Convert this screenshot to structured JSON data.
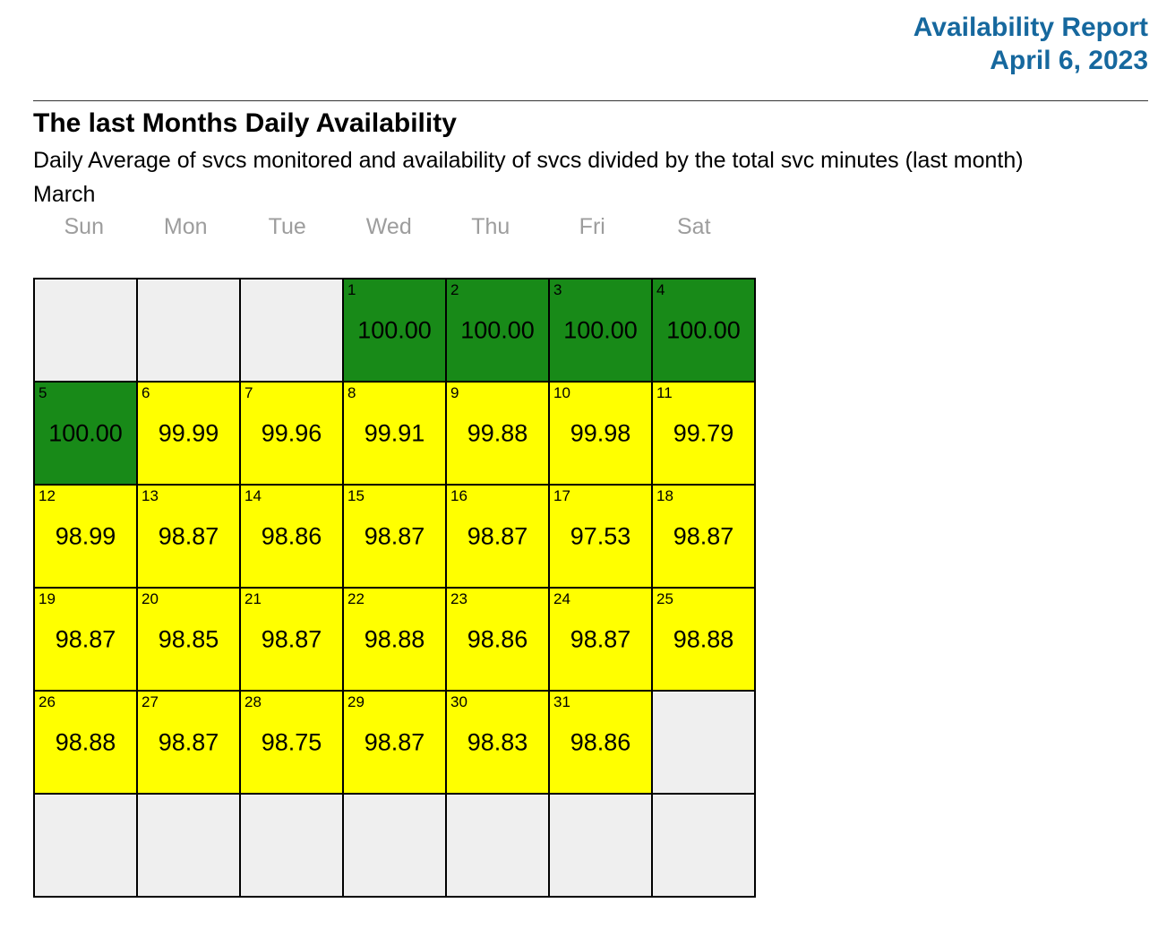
{
  "report": {
    "title": "Availability Report",
    "date": "April 6, 2023"
  },
  "section": {
    "heading": "The last Months Daily Availability",
    "subtitle": "Daily Average of svcs monitored and availability of svcs divided by the total svc minutes (last month)",
    "month": "March"
  },
  "calendar": {
    "weekdays": [
      "Sun",
      "Mon",
      "Tue",
      "Wed",
      "Thu",
      "Fri",
      "Sat"
    ],
    "weeks": [
      [
        null,
        null,
        null,
        {
          "day": 1,
          "value": "100.00",
          "status": "green"
        },
        {
          "day": 2,
          "value": "100.00",
          "status": "green"
        },
        {
          "day": 3,
          "value": "100.00",
          "status": "green"
        },
        {
          "day": 4,
          "value": "100.00",
          "status": "green"
        }
      ],
      [
        {
          "day": 5,
          "value": "100.00",
          "status": "green"
        },
        {
          "day": 6,
          "value": "99.99",
          "status": "yellow"
        },
        {
          "day": 7,
          "value": "99.96",
          "status": "yellow"
        },
        {
          "day": 8,
          "value": "99.91",
          "status": "yellow"
        },
        {
          "day": 9,
          "value": "99.88",
          "status": "yellow"
        },
        {
          "day": 10,
          "value": "99.98",
          "status": "yellow"
        },
        {
          "day": 11,
          "value": "99.79",
          "status": "yellow"
        }
      ],
      [
        {
          "day": 12,
          "value": "98.99",
          "status": "yellow"
        },
        {
          "day": 13,
          "value": "98.87",
          "status": "yellow"
        },
        {
          "day": 14,
          "value": "98.86",
          "status": "yellow"
        },
        {
          "day": 15,
          "value": "98.87",
          "status": "yellow"
        },
        {
          "day": 16,
          "value": "98.87",
          "status": "yellow"
        },
        {
          "day": 17,
          "value": "97.53",
          "status": "yellow"
        },
        {
          "day": 18,
          "value": "98.87",
          "status": "yellow"
        }
      ],
      [
        {
          "day": 19,
          "value": "98.87",
          "status": "yellow"
        },
        {
          "day": 20,
          "value": "98.85",
          "status": "yellow"
        },
        {
          "day": 21,
          "value": "98.87",
          "status": "yellow"
        },
        {
          "day": 22,
          "value": "98.88",
          "status": "yellow"
        },
        {
          "day": 23,
          "value": "98.86",
          "status": "yellow"
        },
        {
          "day": 24,
          "value": "98.87",
          "status": "yellow"
        },
        {
          "day": 25,
          "value": "98.88",
          "status": "yellow"
        }
      ],
      [
        {
          "day": 26,
          "value": "98.88",
          "status": "yellow"
        },
        {
          "day": 27,
          "value": "98.87",
          "status": "yellow"
        },
        {
          "day": 28,
          "value": "98.75",
          "status": "yellow"
        },
        {
          "day": 29,
          "value": "98.87",
          "status": "yellow"
        },
        {
          "day": 30,
          "value": "98.83",
          "status": "yellow"
        },
        {
          "day": 31,
          "value": "98.86",
          "status": "yellow"
        },
        null
      ],
      [
        null,
        null,
        null,
        null,
        null,
        null,
        null
      ]
    ]
  },
  "colors": {
    "title_blue": "#16689e",
    "ok_green": "#188a18",
    "warn_yellow": "#ffff00",
    "empty_gray": "#efefef",
    "weekday_gray": "#9d9d9d"
  }
}
